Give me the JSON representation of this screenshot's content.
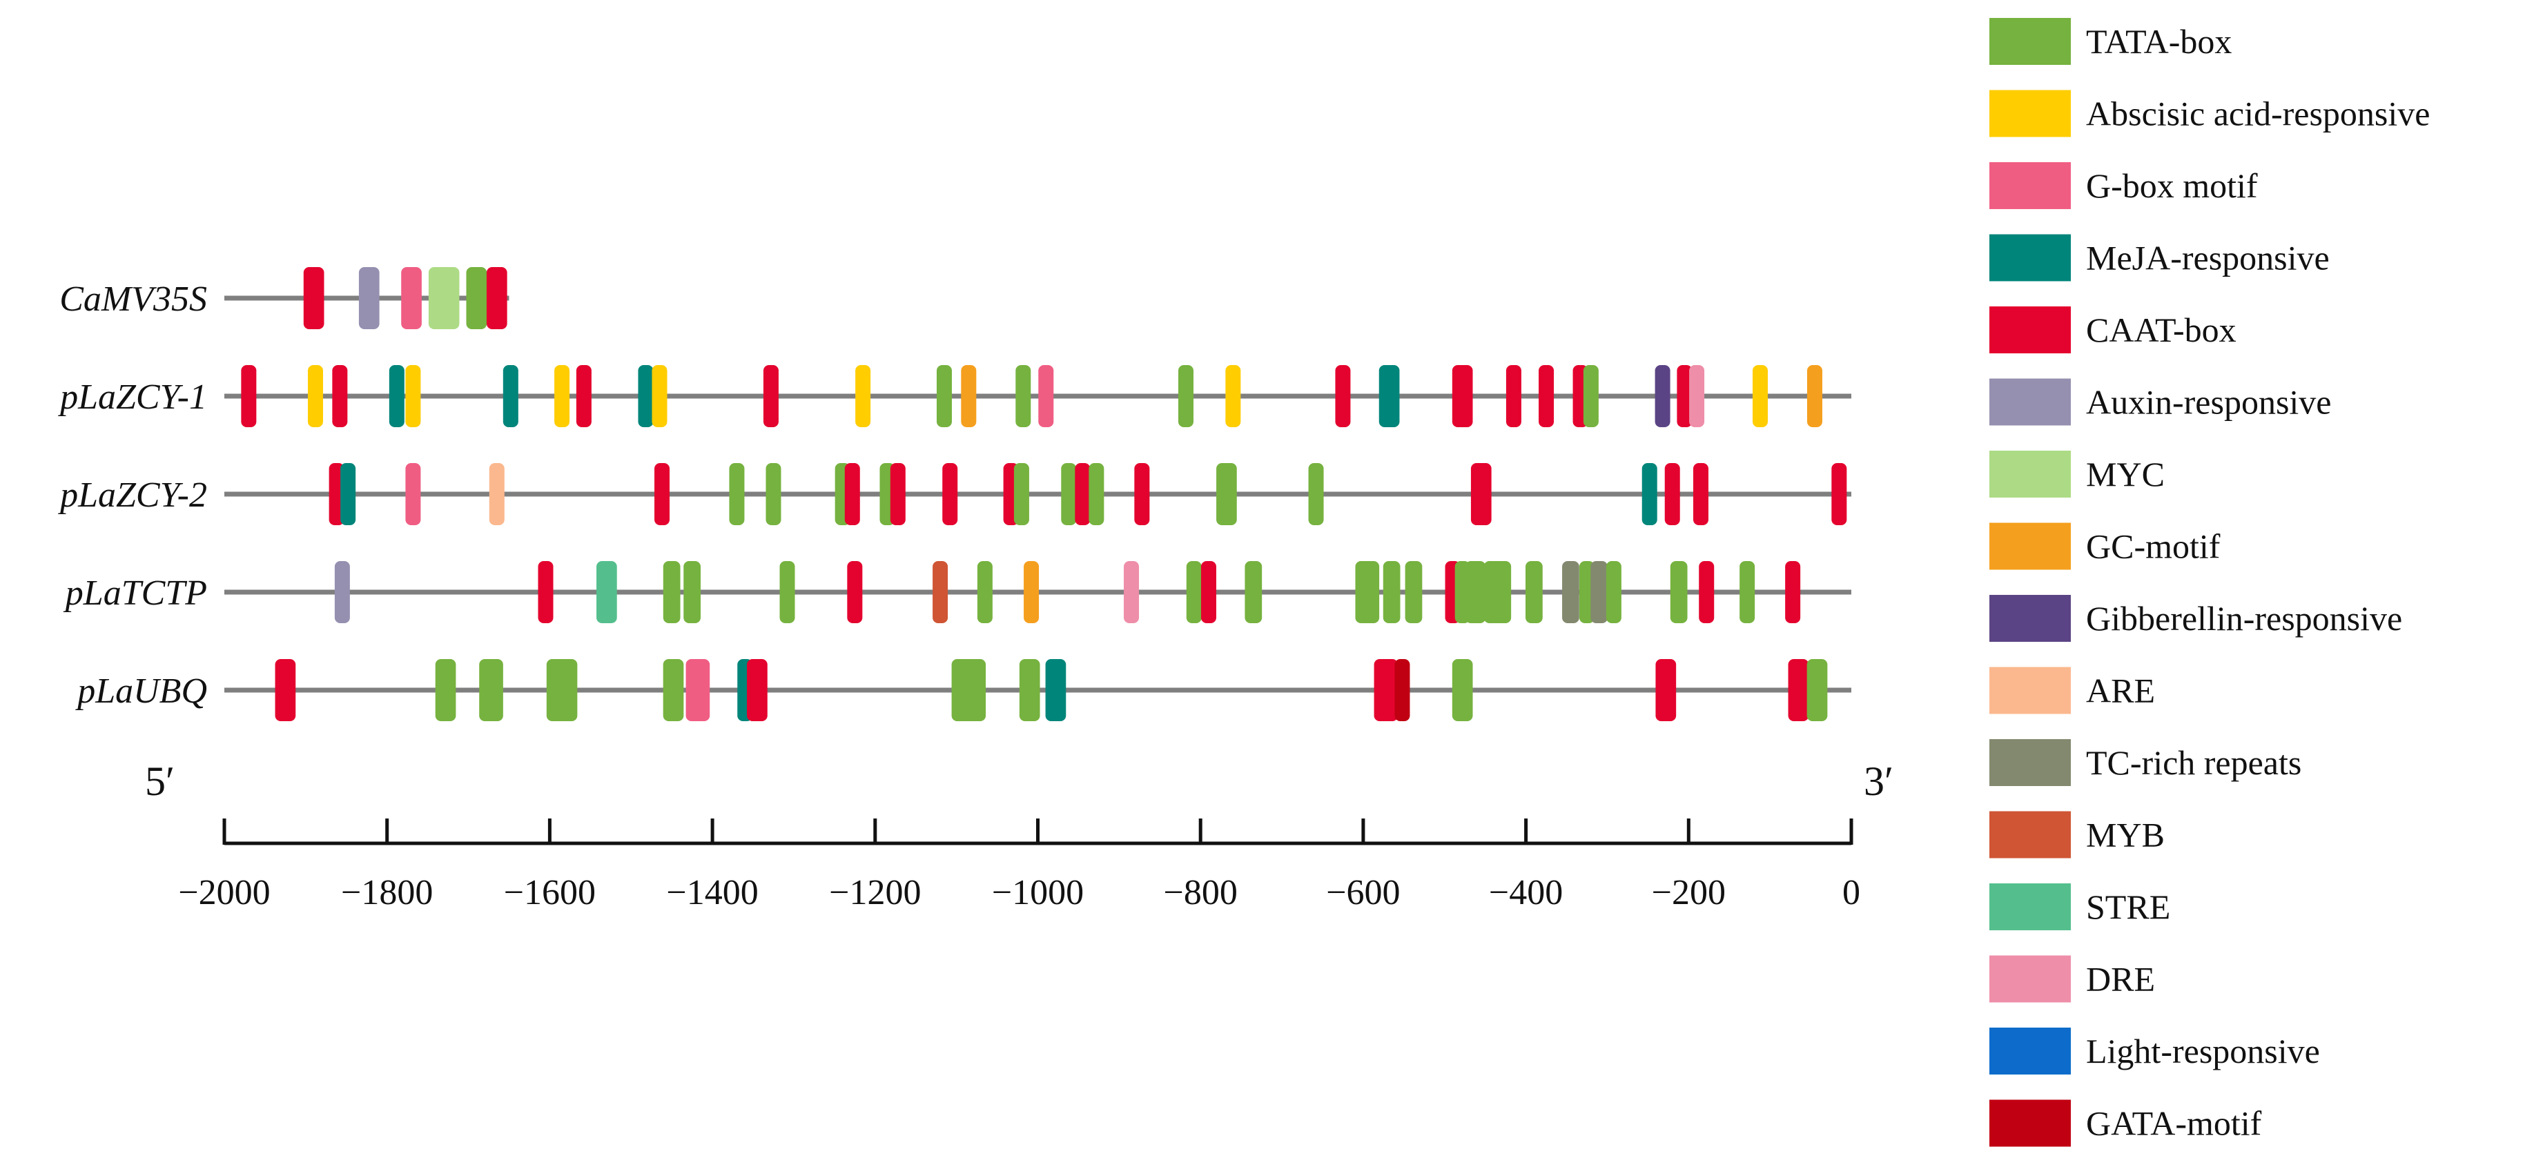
{
  "colors": {
    "TATA-box": "#76b23f",
    "Abscisic acid-responsive": "#ffcd00",
    "G-box motif": "#f05d83",
    "MeJA-responsive": "#00857a",
    "CAAT-box": "#e4032e",
    "Auxin-responsive": "#9590b0",
    "MYC": "#addb85",
    "GC-motif": "#f59f1e",
    "Gibberellin-responsive": "#5b4485",
    "ARE": "#fbb88e",
    "TC-rich repeats": "#83896f",
    "MYB": "#cf5534",
    "STRE": "#54bf8d",
    "DRE": "#ee8ea9",
    "Light-responsive": "#0d6ccb",
    "GATA-motif": "#c00012"
  },
  "legend": [
    "TATA-box",
    "Abscisic acid-responsive",
    "G-box motif",
    "MeJA-responsive",
    "CAAT-box",
    "Auxin-responsive",
    "MYC",
    "GC-motif",
    "Gibberellin-responsive",
    "ARE",
    "TC-rich repeats",
    "MYB",
    "STRE",
    "DRE",
    "Light-responsive",
    "GATA-motif"
  ],
  "axis": {
    "min": -2000,
    "max": 0,
    "ticks": [
      -2000,
      -1800,
      -1600,
      -1400,
      -1200,
      -1000,
      -800,
      -600,
      -400,
      -200,
      0
    ],
    "tick_labels": [
      "−2000",
      "−1800",
      "−1600",
      "−1400",
      "−1200",
      "−1000",
      "−800",
      "−600",
      "−400",
      "−200",
      "0"
    ],
    "left_end_label": "5′",
    "right_end_label": "3′"
  },
  "promoters": [
    {
      "name": "CaMV35S",
      "start": -2000,
      "end": -1650,
      "elements": [
        {
          "type": "CAAT-box",
          "pos": -1890,
          "w": 12
        },
        {
          "type": "Auxin-responsive",
          "pos": -1822,
          "w": 12
        },
        {
          "type": "G-box motif",
          "pos": -1770,
          "w": 12
        },
        {
          "type": "MYC",
          "pos": -1730,
          "w": 18
        },
        {
          "type": "TATA-box",
          "pos": -1690,
          "w": 12
        },
        {
          "type": "CAAT-box",
          "pos": -1665,
          "w": 12
        }
      ]
    },
    {
      "name": "pLaZCY-1",
      "start": -2000,
      "end": 0,
      "elements": [
        {
          "type": "CAAT-box",
          "pos": -1970,
          "w": 8
        },
        {
          "type": "Abscisic acid-responsive",
          "pos": -1888,
          "w": 8
        },
        {
          "type": "CAAT-box",
          "pos": -1858,
          "w": 8
        },
        {
          "type": "MeJA-responsive",
          "pos": -1788,
          "w": 8
        },
        {
          "type": "Abscisic acid-responsive",
          "pos": -1768,
          "w": 8
        },
        {
          "type": "MeJA-responsive",
          "pos": -1648,
          "w": 8
        },
        {
          "type": "Abscisic acid-responsive",
          "pos": -1585,
          "w": 8
        },
        {
          "type": "CAAT-box",
          "pos": -1558,
          "w": 8
        },
        {
          "type": "MeJA-responsive",
          "pos": -1482,
          "w": 8
        },
        {
          "type": "Abscisic acid-responsive",
          "pos": -1465,
          "w": 8
        },
        {
          "type": "CAAT-box",
          "pos": -1328,
          "w": 8
        },
        {
          "type": "Abscisic acid-responsive",
          "pos": -1215,
          "w": 8
        },
        {
          "type": "TATA-box",
          "pos": -1115,
          "w": 8
        },
        {
          "type": "GC-motif",
          "pos": -1085,
          "w": 8
        },
        {
          "type": "TATA-box",
          "pos": -1018,
          "w": 8
        },
        {
          "type": "G-box motif",
          "pos": -990,
          "w": 8
        },
        {
          "type": "TATA-box",
          "pos": -818,
          "w": 8
        },
        {
          "type": "Abscisic acid-responsive",
          "pos": -760,
          "w": 8
        },
        {
          "type": "CAAT-box",
          "pos": -625,
          "w": 8
        },
        {
          "type": "MeJA-responsive",
          "pos": -568,
          "w": 12
        },
        {
          "type": "CAAT-box",
          "pos": -478,
          "w": 12
        },
        {
          "type": "CAAT-box",
          "pos": -415,
          "w": 8
        },
        {
          "type": "CAAT-box",
          "pos": -375,
          "w": 8
        },
        {
          "type": "CAAT-box",
          "pos": -333,
          "w": 6
        },
        {
          "type": "TATA-box",
          "pos": -320,
          "w": 8
        },
        {
          "type": "Gibberellin-responsive",
          "pos": -232,
          "w": 8
        },
        {
          "type": "CAAT-box",
          "pos": -205,
          "w": 8
        },
        {
          "type": "DRE",
          "pos": -190,
          "w": 6
        },
        {
          "type": "Abscisic acid-responsive",
          "pos": -112,
          "w": 8
        },
        {
          "type": "GC-motif",
          "pos": -45,
          "w": 8
        }
      ]
    },
    {
      "name": "pLaZCY-2",
      "start": -2000,
      "end": 0,
      "elements": [
        {
          "type": "CAAT-box",
          "pos": -1862,
          "w": 8
        },
        {
          "type": "MeJA-responsive",
          "pos": -1848,
          "w": 8
        },
        {
          "type": "G-box motif",
          "pos": -1768,
          "w": 8
        },
        {
          "type": "ARE",
          "pos": -1665,
          "w": 8
        },
        {
          "type": "CAAT-box",
          "pos": -1462,
          "w": 8
        },
        {
          "type": "TATA-box",
          "pos": -1370,
          "w": 8
        },
        {
          "type": "TATA-box",
          "pos": -1325,
          "w": 8
        },
        {
          "type": "TATA-box",
          "pos": -1240,
          "w": 6
        },
        {
          "type": "CAAT-box",
          "pos": -1228,
          "w": 8
        },
        {
          "type": "TATA-box",
          "pos": -1185,
          "w": 6
        },
        {
          "type": "CAAT-box",
          "pos": -1172,
          "w": 8
        },
        {
          "type": "CAAT-box",
          "pos": -1108,
          "w": 8
        },
        {
          "type": "CAAT-box",
          "pos": -1033,
          "w": 8
        },
        {
          "type": "TATA-box",
          "pos": -1020,
          "w": 6
        },
        {
          "type": "TATA-box",
          "pos": -962,
          "w": 8
        },
        {
          "type": "CAAT-box",
          "pos": -945,
          "w": 8
        },
        {
          "type": "TATA-box",
          "pos": -928,
          "w": 8
        },
        {
          "type": "CAAT-box",
          "pos": -872,
          "w": 8
        },
        {
          "type": "TATA-box",
          "pos": -768,
          "w": 12
        },
        {
          "type": "TATA-box",
          "pos": -658,
          "w": 8
        },
        {
          "type": "CAAT-box",
          "pos": -455,
          "w": 12
        },
        {
          "type": "MeJA-responsive",
          "pos": -248,
          "w": 8
        },
        {
          "type": "CAAT-box",
          "pos": -220,
          "w": 8
        },
        {
          "type": "CAAT-box",
          "pos": -185,
          "w": 8
        },
        {
          "type": "CAAT-box",
          "pos": -15,
          "w": 8
        }
      ]
    },
    {
      "name": "pLaTCTP",
      "start": -2000,
      "end": 0,
      "elements": [
        {
          "type": "Auxin-responsive",
          "pos": -1855,
          "w": 8
        },
        {
          "type": "CAAT-box",
          "pos": -1605,
          "w": 8
        },
        {
          "type": "STRE",
          "pos": -1530,
          "w": 12
        },
        {
          "type": "TATA-box",
          "pos": -1450,
          "w": 10
        },
        {
          "type": "TATA-box",
          "pos": -1425,
          "w": 10
        },
        {
          "type": "TATA-box",
          "pos": -1308,
          "w": 8
        },
        {
          "type": "CAAT-box",
          "pos": -1225,
          "w": 8
        },
        {
          "type": "MYB",
          "pos": -1120,
          "w": 8
        },
        {
          "type": "TATA-box",
          "pos": -1065,
          "w": 8
        },
        {
          "type": "GC-motif",
          "pos": -1008,
          "w": 8
        },
        {
          "type": "DRE",
          "pos": -885,
          "w": 8
        },
        {
          "type": "TATA-box",
          "pos": -808,
          "w": 8
        },
        {
          "type": "CAAT-box",
          "pos": -790,
          "w": 8
        },
        {
          "type": "TATA-box",
          "pos": -735,
          "w": 10
        },
        {
          "type": "TATA-box",
          "pos": -595,
          "w": 14
        },
        {
          "type": "TATA-box",
          "pos": -565,
          "w": 10
        },
        {
          "type": "TATA-box",
          "pos": -538,
          "w": 10
        },
        {
          "type": "CAAT-box",
          "pos": -490,
          "w": 8
        },
        {
          "type": "TATA-box",
          "pos": -478,
          "w": 6
        },
        {
          "type": "TATA-box",
          "pos": -462,
          "w": 12
        },
        {
          "type": "TATA-box",
          "pos": -435,
          "w": 16
        },
        {
          "type": "TATA-box",
          "pos": -390,
          "w": 10
        },
        {
          "type": "TC-rich repeats",
          "pos": -345,
          "w": 10
        },
        {
          "type": "TATA-box",
          "pos": -325,
          "w": 8
        },
        {
          "type": "TC-rich repeats",
          "pos": -310,
          "w": 10
        },
        {
          "type": "TATA-box",
          "pos": -292,
          "w": 8
        },
        {
          "type": "TATA-box",
          "pos": -212,
          "w": 10
        },
        {
          "type": "CAAT-box",
          "pos": -178,
          "w": 8
        },
        {
          "type": "TATA-box",
          "pos": -128,
          "w": 8
        },
        {
          "type": "CAAT-box",
          "pos": -72,
          "w": 8
        }
      ]
    },
    {
      "name": "pLaUBQ",
      "start": -2000,
      "end": 0,
      "elements": [
        {
          "type": "CAAT-box",
          "pos": -1925,
          "w": 12
        },
        {
          "type": "TATA-box",
          "pos": -1728,
          "w": 12
        },
        {
          "type": "TATA-box",
          "pos": -1672,
          "w": 14
        },
        {
          "type": "TATA-box",
          "pos": -1585,
          "w": 18
        },
        {
          "type": "TATA-box",
          "pos": -1448,
          "w": 12
        },
        {
          "type": "G-box motif",
          "pos": -1418,
          "w": 14
        },
        {
          "type": "MeJA-responsive",
          "pos": -1360,
          "w": 6
        },
        {
          "type": "CAAT-box",
          "pos": -1345,
          "w": 12
        },
        {
          "type": "TATA-box",
          "pos": -1085,
          "w": 20
        },
        {
          "type": "TATA-box",
          "pos": -1010,
          "w": 12
        },
        {
          "type": "MeJA-responsive",
          "pos": -978,
          "w": 12
        },
        {
          "type": "CAAT-box",
          "pos": -572,
          "w": 14
        },
        {
          "type": "GATA-motif",
          "pos": -552,
          "w": 8
        },
        {
          "type": "TATA-box",
          "pos": -478,
          "w": 12
        },
        {
          "type": "CAAT-box",
          "pos": -228,
          "w": 12
        },
        {
          "type": "CAAT-box",
          "pos": -65,
          "w": 12
        },
        {
          "type": "TATA-box",
          "pos": -42,
          "w": 12
        }
      ]
    }
  ]
}
